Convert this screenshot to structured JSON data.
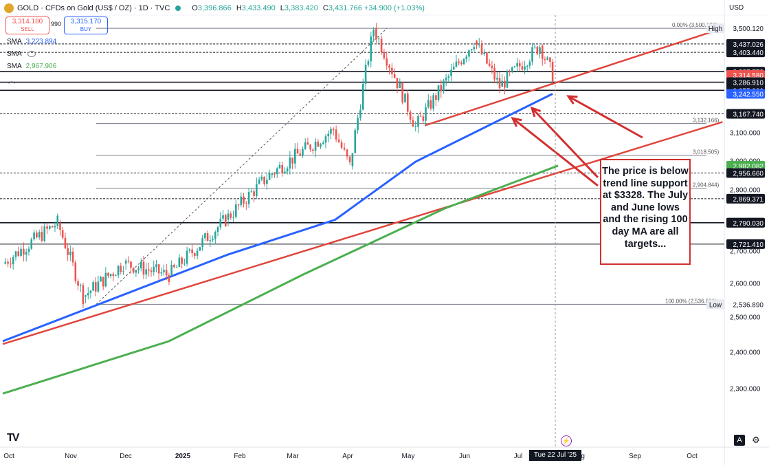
{
  "header": {
    "symbol": "GOLD · CFDs on Gold (US$ / OZ) · 1D · TVC",
    "open_label": "O",
    "open": "3,396.866",
    "high_label": "H",
    "high": "3,433.490",
    "low_label": "L",
    "low": "3,383.420",
    "close_label": "C",
    "close": "3,431.766",
    "change": "+34.900 (+1.03%)"
  },
  "trade": {
    "sell_price": "3,314.180",
    "sell_label": "SELL",
    "spread": "990",
    "buy_price": "3,315.170",
    "buy_label": "BUY"
  },
  "indicators": [
    {
      "label": "SMA",
      "value": "3,223.894",
      "color": "#2962ff"
    },
    {
      "label": "SMA",
      "value": "",
      "color": "#f44336"
    },
    {
      "label": "SMA",
      "value": "2,967.906",
      "color": "#4caf50"
    }
  ],
  "currency_button": "USD",
  "callout_text": "The price is below trend line support at $3328.  The July and June lows and the rising 100 day MA are all targets...",
  "time_badge": "Tue 22 Jul '25",
  "auto_button": "A",
  "logo": "TV",
  "chart_data": {
    "type": "candlestick",
    "ylim": [
      2200,
      3560
    ],
    "yscale": "log",
    "x_range": [
      "2024-10-01",
      "2025-10-31"
    ],
    "y_ticks": [
      2300,
      2400,
      2500,
      2600,
      2700,
      2900,
      3000,
      3100
    ],
    "x_ticks": [
      "Oct",
      "Nov",
      "Dec",
      "2025",
      "Feb",
      "Mar",
      "Apr",
      "May",
      "Jun",
      "Jul",
      "Aug",
      "Sep",
      "Oct"
    ],
    "candles_monthly_approx": [
      {
        "date": "2024-10-01",
        "value": 2660
      },
      {
        "date": "2024-10-31",
        "value": 2790
      },
      {
        "date": "2024-11-14",
        "value": 2560
      },
      {
        "date": "2024-12-06",
        "value": 2660
      },
      {
        "date": "2024-12-31",
        "value": 2625
      },
      {
        "date": "2025-01-31",
        "value": 2800
      },
      {
        "date": "2025-02-24",
        "value": 2950
      },
      {
        "date": "2025-03-31",
        "value": 3110
      },
      {
        "date": "2025-04-09",
        "value": 2980
      },
      {
        "date": "2025-04-22",
        "value": 3500
      },
      {
        "date": "2025-05-15",
        "value": 3120
      },
      {
        "date": "2025-06-16",
        "value": 3450
      },
      {
        "date": "2025-06-30",
        "value": 3270
      },
      {
        "date": "2025-07-22",
        "value": 3430
      },
      {
        "date": "2025-07-29",
        "value": 3314
      }
    ],
    "price_labels": [
      {
        "value": 3500.12,
        "text": "3,500.120",
        "tag": "High",
        "bg": "#ffffff"
      },
      {
        "value": 3437.026,
        "text": "3,437.026",
        "bg": "#131722"
      },
      {
        "value": 3403.44,
        "text": "3,403.440",
        "bg": "#131722"
      },
      {
        "value": 3327.77,
        "text": "3,327.770",
        "bg": "#131722"
      },
      {
        "value": 3314.58,
        "text": "3,314.580",
        "bg": "#ef5350"
      },
      {
        "value": 3286.91,
        "text": "3,286.910",
        "bg": "#131722"
      },
      {
        "value": 3255.92,
        "text": "3,255.920",
        "bg": "#131722"
      },
      {
        "value": 3242.55,
        "text": "3,242.550",
        "bg": "#2962ff"
      },
      {
        "value": 3167.74,
        "text": "3,167.740",
        "bg": "#131722"
      },
      {
        "value": 2982.082,
        "text": "2,982.082",
        "bg": "#4caf50"
      },
      {
        "value": 2956.66,
        "text": "2,956.660",
        "bg": "#131722"
      },
      {
        "value": 2869.371,
        "text": "2,869.371",
        "bg": "#131722"
      },
      {
        "value": 2790.07,
        "text": "2,790.070",
        "bg": "#131722"
      },
      {
        "value": 2790.03,
        "text": "2,790.030",
        "bg": "#131722"
      },
      {
        "value": 2721.41,
        "text": "2,721.410",
        "bg": "#131722"
      },
      {
        "value": 2536.89,
        "text": "2,536.890",
        "tag": "Low",
        "bg": "#ffffff"
      }
    ],
    "fib_levels": [
      {
        "value": 3500.12,
        "text": "0.00% (3,500.120)"
      },
      {
        "value": 3132.166,
        "text": "3,132.166)"
      },
      {
        "value": 3018.505,
        "text": "3,018.505)"
      },
      {
        "value": 2904.844,
        "text": "2,904.844)"
      },
      {
        "value": 2536.89,
        "text": "100.00% (2,536.890)"
      }
    ],
    "horizontal_lines": [
      3437.026,
      3403.44,
      3327.77,
      3286.91,
      3255.92,
      3167.74,
      2956.66,
      2869.371,
      2790.07,
      2721.41
    ],
    "sma_100": [
      {
        "date": "2024-10-01",
        "value": 2430
      },
      {
        "date": "2025-02-01",
        "value": 2688
      },
      {
        "date": "2025-04-01",
        "value": 2800
      },
      {
        "date": "2025-05-15",
        "value": 2996
      },
      {
        "date": "2025-07-29",
        "value": 3242.55
      }
    ],
    "sma_200": [
      {
        "date": "2024-10-01",
        "value": 2286
      },
      {
        "date": "2024-12-31",
        "value": 2430
      },
      {
        "date": "2025-03-15",
        "value": 2628
      },
      {
        "date": "2025-05-31",
        "value": 2837
      },
      {
        "date": "2025-08-01",
        "value": 2982.082
      }
    ],
    "trendlines": [
      {
        "from": {
          "date": "2024-10-01",
          "value": 2422
        },
        "to": {
          "date": "2025-10-30",
          "value": 3138
        },
        "color": "#e0463c"
      },
      {
        "from": {
          "date": "2025-05-20",
          "value": 3125
        },
        "to": {
          "date": "2025-10-30",
          "value": 3500
        },
        "color": "#e0463c"
      }
    ]
  }
}
